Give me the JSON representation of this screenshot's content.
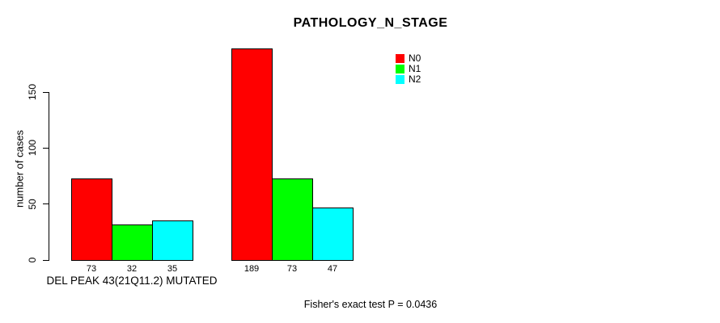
{
  "page": {
    "background": "#ffffff",
    "text_color": "#000000"
  },
  "chart_data": {
    "type": "bar",
    "title": "PATHOLOGY_N_STAGE",
    "ylabel": "number of cases",
    "xlabel": "",
    "categories": [
      "DEL PEAK 43(21Q11.2) MUTATED",
      ""
    ],
    "series": [
      {
        "name": "N0",
        "color": "#ff0000",
        "values": [
          73,
          189
        ]
      },
      {
        "name": "N1",
        "color": "#00ff00",
        "values": [
          32,
          73
        ]
      },
      {
        "name": "N2",
        "color": "#00ffff",
        "values": [
          35,
          47
        ]
      }
    ],
    "yticks": [
      0,
      50,
      100,
      150
    ],
    "ylim": [
      0,
      189
    ],
    "bar_value_labels": [
      [
        73,
        32,
        35
      ],
      [
        189,
        73,
        47
      ]
    ],
    "legend": {
      "position": "top-right",
      "entries": [
        "N0",
        "N1",
        "N2"
      ]
    },
    "annotation": "Fisher's exact test P = 0.0436",
    "grid": false,
    "axis_color": "#000000",
    "bar_border_color": "#000000"
  }
}
